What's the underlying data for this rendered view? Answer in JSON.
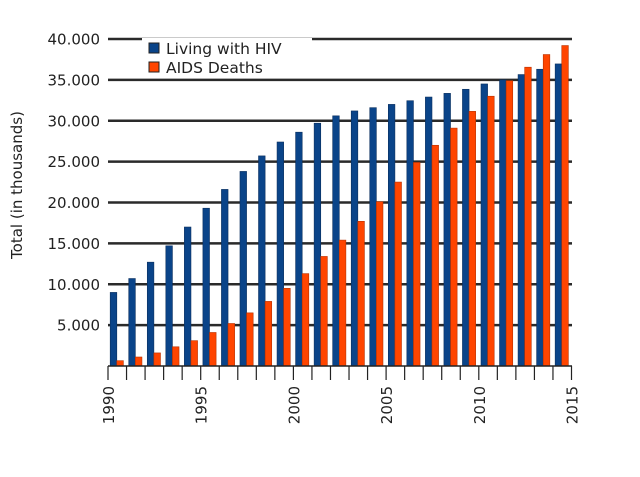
{
  "chart_data": {
    "type": "bar",
    "title": "",
    "xlabel": "",
    "ylabel": "Total (in thousands)",
    "ylim": [
      0,
      40000
    ],
    "yticks": [
      5000,
      10000,
      15000,
      20000,
      25000,
      30000,
      35000,
      40000
    ],
    "ytick_labels": [
      "5.000",
      "10.000",
      "15.000",
      "20.000",
      "25.000",
      "30.000",
      "35.000",
      "40.000"
    ],
    "xlim": [
      1990,
      2015
    ],
    "xticks": [
      1990,
      1995,
      2000,
      2005,
      2010,
      2015
    ],
    "xtick_labels": [
      "1990",
      "1995",
      "2000",
      "2005",
      "2010",
      "2015"
    ],
    "grid": "horizontal",
    "legend_position": "top-left",
    "categories": [
      1990,
      1991,
      1992,
      1993,
      1994,
      1995,
      1996,
      1997,
      1998,
      1999,
      2000,
      2001,
      2002,
      2003,
      2004,
      2005,
      2006,
      2007,
      2008,
      2009,
      2010,
      2011,
      2012,
      2013,
      2014
    ],
    "series": [
      {
        "name": "Living with HIV",
        "color": "#0a4489",
        "values": [
          9000,
          10700,
          12700,
          14700,
          17000,
          19300,
          21600,
          23800,
          25700,
          27400,
          28600,
          29700,
          30600,
          31200,
          31600,
          32000,
          32450,
          32900,
          33350,
          33850,
          34500,
          35000,
          35650,
          36300,
          36950
        ]
      },
      {
        "name": "AIDS Deaths",
        "color": "#ff4500",
        "values": [
          650,
          1100,
          1600,
          2350,
          3100,
          4100,
          5200,
          6500,
          7900,
          9500,
          11300,
          13400,
          15400,
          17700,
          20100,
          22500,
          24900,
          27000,
          29100,
          31150,
          33000,
          34900,
          36550,
          38100,
          39200
        ]
      }
    ]
  }
}
